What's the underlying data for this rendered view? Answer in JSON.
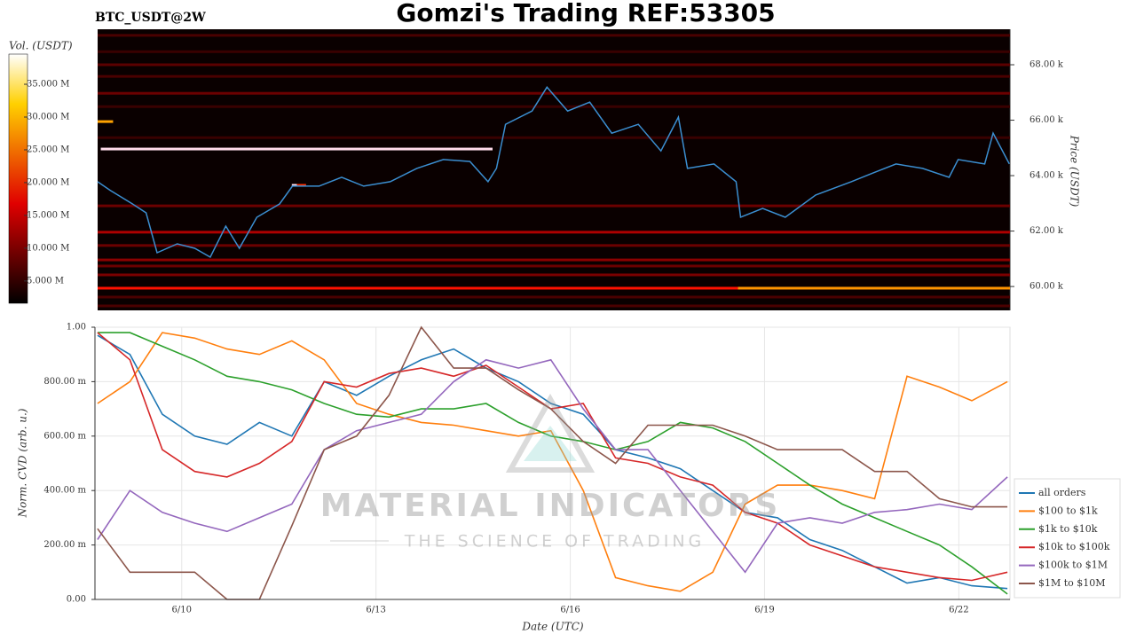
{
  "chart_data": [
    {
      "type": "heatmap",
      "title": "Gomzi's Trading REF:53305",
      "label": "BTC_USDT@2W",
      "ylabel": "Price (USDT)",
      "xlim": [
        8.66,
        22.79
      ],
      "ylim": [
        59140,
        69280
      ],
      "yticks": [
        {
          "value": 60000,
          "label": "60.00 k"
        },
        {
          "value": 62000,
          "label": "62.00 k"
        },
        {
          "value": 64000,
          "label": "64.00 k"
        },
        {
          "value": 66000,
          "label": "66.00 k"
        },
        {
          "value": 68000,
          "label": "68.00 k"
        }
      ],
      "colorbar": {
        "label": "Vol. (USDT)",
        "lim": [
          1600000,
          39600000
        ],
        "ticks": [
          {
            "value": 5000000,
            "label": "5.000 M"
          },
          {
            "value": 10000000,
            "label": "10.000 M"
          },
          {
            "value": 15000000,
            "label": "15.000 M"
          },
          {
            "value": 20000000,
            "label": "20.000 M"
          },
          {
            "value": 25000000,
            "label": "25.000 M"
          },
          {
            "value": 30000000,
            "label": "30.000 M"
          },
          {
            "value": 35000000,
            "label": "35.000 M"
          }
        ]
      },
      "bands": [
        {
          "x": [
            8.7,
            22.79
          ],
          "price": 69060,
          "volume": 6000000
        },
        {
          "x": [
            8.7,
            22.79
          ],
          "price": 68470,
          "volume": 5000000
        },
        {
          "x": [
            8.7,
            22.79
          ],
          "price": 68000,
          "volume": 7000000
        },
        {
          "x": [
            8.7,
            22.79
          ],
          "price": 67580,
          "volume": 6000000
        },
        {
          "x": [
            8.7,
            22.79
          ],
          "price": 66970,
          "volume": 8000000
        },
        {
          "x": [
            8.7,
            22.79
          ],
          "price": 66490,
          "volume": 5000000
        },
        {
          "x": [
            8.7,
            22.79
          ],
          "price": 65370,
          "volume": 5000000
        },
        {
          "x": [
            8.7,
            22.79
          ],
          "price": 62910,
          "volume": 8000000
        },
        {
          "x": [
            8.7,
            22.79
          ],
          "price": 61960,
          "volume": 12000000
        },
        {
          "x": [
            8.7,
            22.79
          ],
          "price": 61480,
          "volume": 8000000
        },
        {
          "x": [
            8.7,
            22.79
          ],
          "price": 60960,
          "volume": 10000000
        },
        {
          "x": [
            8.7,
            22.79
          ],
          "price": 60740,
          "volume": 8000000
        },
        {
          "x": [
            8.7,
            22.79
          ],
          "price": 60420,
          "volume": 9000000
        },
        {
          "x": [
            8.7,
            22.79
          ],
          "price": 59940,
          "volume": 18000000
        },
        {
          "x": [
            8.7,
            22.79
          ],
          "price": 59620,
          "volume": 6000000
        },
        {
          "x": [
            8.7,
            22.79
          ],
          "price": 59300,
          "volume": 6000000
        },
        {
          "x": [
            8.75,
            14.8
          ],
          "price": 64960,
          "volume": 39000000
        },
        {
          "x": [
            8.7,
            8.94
          ],
          "price": 65950,
          "volume": 28000000
        },
        {
          "x": [
            18.59,
            22.79
          ],
          "price": 59940,
          "volume": 27000000
        },
        {
          "x": [
            11.7,
            11.78
          ],
          "price": 63650,
          "volume": 39000000
        },
        {
          "x": [
            11.78,
            11.92
          ],
          "price": 63650,
          "volume": 20000000
        }
      ],
      "price_line": {
        "color": "#3b8ed0",
        "x": [
          8.7,
          8.9,
          9.24,
          9.45,
          9.62,
          9.93,
          10.2,
          10.44,
          10.68,
          10.89,
          11.16,
          11.51,
          11.71,
          12.12,
          12.47,
          12.81,
          13.22,
          13.63,
          14.04,
          14.45,
          14.73,
          14.86,
          15.0,
          15.41,
          15.64,
          15.96,
          16.3,
          16.64,
          17.05,
          17.4,
          17.67,
          17.81,
          18.22,
          18.56,
          18.63,
          18.97,
          19.32,
          19.79,
          20.34,
          20.68,
          21.03,
          21.44,
          21.85,
          21.99,
          22.4,
          22.53,
          22.78
        ],
        "values": [
          63780,
          63460,
          62980,
          62660,
          61220,
          61540,
          61380,
          61060,
          62180,
          61380,
          62500,
          62980,
          63620,
          63620,
          63940,
          63620,
          63780,
          64260,
          64580,
          64510,
          63780,
          64260,
          65850,
          66330,
          67190,
          66330,
          66650,
          65530,
          65850,
          64890,
          66110,
          64260,
          64420,
          63780,
          62500,
          62820,
          62500,
          63300,
          63780,
          64100,
          64420,
          64260,
          63940,
          64580,
          64420,
          65530,
          64420
        ]
      }
    },
    {
      "type": "line",
      "xlabel": "Date (UTC)",
      "ylabel": "Norm. CVD (arb. u.)",
      "grid": true,
      "xlim": [
        8.66,
        22.79
      ],
      "ylim": [
        0,
        1
      ],
      "xticks": [
        {
          "value": 10,
          "label": "6/10"
        },
        {
          "value": 13,
          "label": "6/13"
        },
        {
          "value": 16,
          "label": "6/16"
        },
        {
          "value": 19,
          "label": "6/19"
        },
        {
          "value": 22,
          "label": "6/22"
        }
      ],
      "yticks": [
        {
          "value": 0,
          "label": "0.00"
        },
        {
          "value": 0.2,
          "label": "200.00 m"
        },
        {
          "value": 0.4,
          "label": "400.00 m"
        },
        {
          "value": 0.6,
          "label": "600.00 m"
        },
        {
          "value": 0.8,
          "label": "800.00 m"
        },
        {
          "value": 1,
          "label": "1.00"
        }
      ],
      "watermark": {
        "title": "MATERIAL INDICATORS",
        "subtitle": "THE SCIENCE OF TRADING"
      },
      "x": [
        8.7,
        9.2,
        9.7,
        10.2,
        10.7,
        11.2,
        11.7,
        12.2,
        12.7,
        13.2,
        13.7,
        14.2,
        14.7,
        15.2,
        15.7,
        16.2,
        16.7,
        17.2,
        17.7,
        18.2,
        18.7,
        19.2,
        19.7,
        20.2,
        20.7,
        21.2,
        21.7,
        22.2,
        22.75
      ],
      "series": [
        {
          "name": "all orders",
          "color": "#1f77b4",
          "values": [
            0.97,
            0.9,
            0.68,
            0.6,
            0.57,
            0.65,
            0.6,
            0.8,
            0.75,
            0.82,
            0.88,
            0.92,
            0.85,
            0.8,
            0.72,
            0.68,
            0.55,
            0.52,
            0.48,
            0.4,
            0.32,
            0.3,
            0.22,
            0.18,
            0.12,
            0.06,
            0.08,
            0.05,
            0.04
          ]
        },
        {
          "name": "$100 to $1k",
          "color": "#ff7f0e",
          "values": [
            0.72,
            0.8,
            0.98,
            0.96,
            0.92,
            0.9,
            0.95,
            0.88,
            0.72,
            0.68,
            0.65,
            0.64,
            0.62,
            0.6,
            0.62,
            0.4,
            0.08,
            0.05,
            0.03,
            0.1,
            0.35,
            0.42,
            0.42,
            0.4,
            0.37,
            0.82,
            0.78,
            0.73,
            0.8
          ]
        },
        {
          "name": "$1k to $10k",
          "color": "#2ca02c",
          "values": [
            0.98,
            0.98,
            0.93,
            0.88,
            0.82,
            0.8,
            0.77,
            0.72,
            0.68,
            0.67,
            0.7,
            0.7,
            0.72,
            0.65,
            0.6,
            0.58,
            0.55,
            0.58,
            0.65,
            0.63,
            0.58,
            0.5,
            0.42,
            0.35,
            0.3,
            0.25,
            0.2,
            0.12,
            0.02
          ]
        },
        {
          "name": "$10k to $100k",
          "color": "#d62728",
          "values": [
            0.98,
            0.88,
            0.55,
            0.47,
            0.45,
            0.5,
            0.58,
            0.8,
            0.78,
            0.83,
            0.85,
            0.82,
            0.86,
            0.78,
            0.7,
            0.72,
            0.52,
            0.5,
            0.45,
            0.42,
            0.32,
            0.28,
            0.2,
            0.16,
            0.12,
            0.1,
            0.08,
            0.07,
            0.1
          ]
        },
        {
          "name": "$100k to $1M",
          "color": "#9467bd",
          "values": [
            0.22,
            0.4,
            0.32,
            0.28,
            0.25,
            0.3,
            0.35,
            0.55,
            0.62,
            0.65,
            0.68,
            0.8,
            0.88,
            0.85,
            0.88,
            0.7,
            0.55,
            0.55,
            0.4,
            0.25,
            0.1,
            0.28,
            0.3,
            0.28,
            0.32,
            0.33,
            0.35,
            0.33,
            0.45
          ]
        },
        {
          "name": "$1M to $10M",
          "color": "#8c564b",
          "values": [
            0.26,
            0.1,
            0.1,
            0.1,
            0.0,
            0.0,
            0.27,
            0.55,
            0.6,
            0.75,
            1.0,
            0.85,
            0.85,
            0.77,
            0.7,
            0.58,
            0.5,
            0.64,
            0.64,
            0.64,
            0.6,
            0.55,
            0.55,
            0.55,
            0.47,
            0.47,
            0.37,
            0.34,
            0.34
          ]
        }
      ]
    }
  ]
}
